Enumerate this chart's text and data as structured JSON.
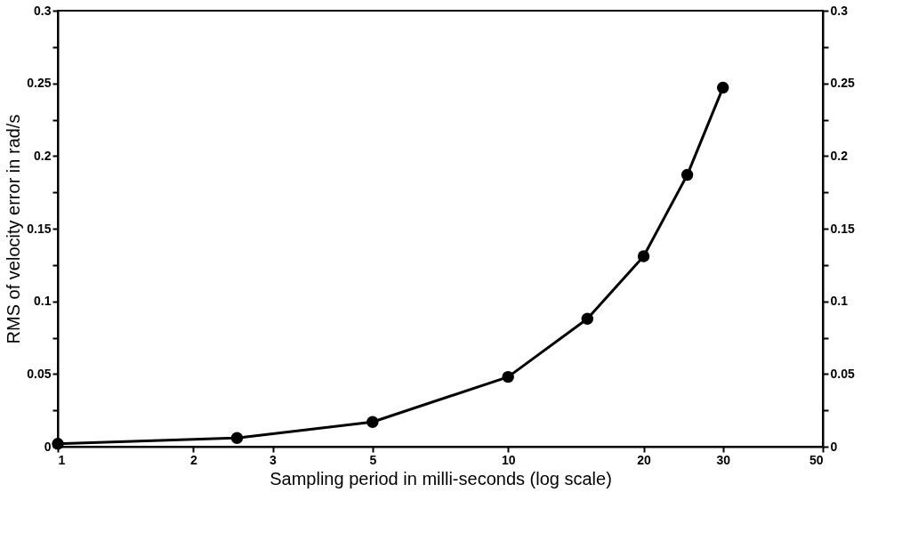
{
  "chart_data": {
    "type": "line",
    "xlabel": "Sampling period in milli-seconds (log scale)",
    "ylabel": "RMS of velocity error in rad/s",
    "x": [
      1,
      2.5,
      5,
      10,
      15,
      20,
      25,
      30
    ],
    "series": [
      {
        "color": "#000000",
        "values": [
          0.002,
          0.006,
          0.017,
          0.048,
          0.088,
          0.131,
          0.187,
          0.247
        ]
      }
    ],
    "log": "x",
    "xlim": [
      1,
      50
    ],
    "xticks": [
      1,
      2,
      3,
      5,
      10,
      20,
      30,
      50
    ],
    "ylim": [
      0,
      0.3
    ],
    "yticks": [
      0,
      {
        "value": 0.025,
        "label": null
      },
      0.05,
      {
        "value": 0.075,
        "label": null
      },
      0.1,
      {
        "value": 0.125,
        "label": null
      },
      0.15,
      {
        "value": 0.175,
        "label": null
      },
      0.2,
      {
        "value": 0.225,
        "label": null
      },
      0.25,
      {
        "value": 0.275,
        "label": null
      },
      0.3
    ],
    "y2lim": [
      0,
      0.3
    ],
    "y2ticks": [
      0,
      {
        "value": 0.025,
        "label": null
      },
      0.05,
      {
        "value": 0.075,
        "label": null
      },
      0.1,
      {
        "value": 0.125,
        "label": null
      },
      0.15,
      {
        "value": 0.175,
        "label": null
      },
      0.2,
      {
        "value": 0.225,
        "label": null
      },
      0.25,
      {
        "value": 0.275,
        "label": null
      },
      0.3
    ],
    "grid": false,
    "marker": "circle",
    "line_style": "solid"
  }
}
